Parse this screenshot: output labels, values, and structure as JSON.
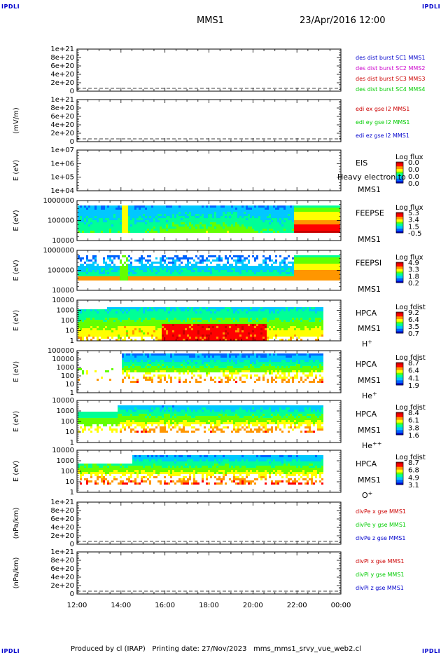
{
  "header": {
    "corner_label": "IPDLI",
    "mission": "MMS1",
    "datetime": "23/Apr/2016 12:00"
  },
  "footer": {
    "text": "Produced by cl (IRAP)   Printing date: 27/Nov/2023   mms_mms1_srvy_vue_web2.cl"
  },
  "colors": {
    "blue": "#0000cc",
    "magenta": "#cc00cc",
    "red": "#cc0000",
    "green": "#00cc00",
    "spectrogram_scale": [
      "#0000c8",
      "#0064ff",
      "#00c8ff",
      "#00ff96",
      "#64ff00",
      "#ffff00",
      "#ff9600",
      "#ff0000",
      "#c80000"
    ]
  },
  "chart_data": {
    "type": "multi-panel time series and spectrograms",
    "x_axis": {
      "tick_labels": [
        "12:00",
        "14:00",
        "16:00",
        "18:00",
        "20:00",
        "22:00",
        "00:00"
      ],
      "range_hours": [
        12,
        24
      ]
    },
    "panels": [
      {
        "id": "p1",
        "kind": "line",
        "ylabel": "",
        "ytick_labels": [
          "1e+21",
          "8e+20",
          "6e+20",
          "4e+20",
          "2e+20",
          "0"
        ],
        "legend": [
          {
            "text": "des dist burst SC1 MMS1",
            "color": "#0000cc"
          },
          {
            "text": "des dist burst SC2 MMS2",
            "color": "#cc00cc"
          },
          {
            "text": "des dist burst SC3 MMS3",
            "color": "#cc0000"
          },
          {
            "text": "des dist burst SC4 MMS4",
            "color": "#00cc00"
          }
        ]
      },
      {
        "id": "p2",
        "kind": "line",
        "ylabel": "(mV/m)",
        "ytick_labels": [
          "1e+21",
          "8e+20",
          "6e+20",
          "4e+20",
          "2e+20",
          "0"
        ],
        "legend": [
          {
            "text": "edi ex gse l2 MMS1",
            "color": "#cc0000"
          },
          {
            "text": "edi ey gse l2 MMS1",
            "color": "#00cc00"
          },
          {
            "text": "edi ez gse l2 MMS1",
            "color": "#0000cc"
          }
        ]
      },
      {
        "id": "p3",
        "kind": "spectrogram",
        "ylabel": "E (eV)",
        "ytick_labels": [
          "1e+07",
          "1e+06",
          "1e+05",
          "1e+04"
        ],
        "instrument": [
          "EIS"
        ],
        "overlay": "Heavy electron to",
        "spacecraft": "MMS1",
        "species": "",
        "colorbar": {
          "title": "Log flux",
          "labels": [
            "0.0",
            "0.0",
            "0.0",
            "0.0"
          ]
        }
      },
      {
        "id": "p4",
        "kind": "spectrogram",
        "ylabel": "E (eV)",
        "ytick_labels": [
          "1000000",
          "100000",
          "10000"
        ],
        "instrument": [
          "FEEPSE"
        ],
        "spacecraft": "MMS1",
        "species": "",
        "colorbar": {
          "title": "Log flux",
          "labels": [
            "5.3",
            "3.4",
            "1.5",
            "-0.5"
          ]
        }
      },
      {
        "id": "p5",
        "kind": "spectrogram",
        "ylabel": "E (eV)",
        "ytick_labels": [
          "1000000",
          "100000",
          "10000"
        ],
        "instrument": [
          "FEEPSI"
        ],
        "spacecraft": "MMS1",
        "species": "",
        "colorbar": {
          "title": "Log flux",
          "labels": [
            "4.9",
            "3.3",
            "1.8",
            "0.2"
          ]
        }
      },
      {
        "id": "p6",
        "kind": "spectrogram",
        "ylabel": "E (eV)",
        "ytick_labels": [
          "10000",
          "1000",
          "100",
          "10",
          "1"
        ],
        "instrument": [
          "HPCA"
        ],
        "spacecraft": "MMS1",
        "species": "H+",
        "colorbar": {
          "title": "Log fdist",
          "labels": [
            "9.2",
            "6.4",
            "3.5",
            "0.7"
          ]
        }
      },
      {
        "id": "p7",
        "kind": "spectrogram",
        "ylabel": "E (eV)",
        "ytick_labels": [
          "100000",
          "10000",
          "1000",
          "100",
          "10",
          "1"
        ],
        "instrument": [
          "HPCA"
        ],
        "spacecraft": "MMS1",
        "species": "He+",
        "colorbar": {
          "title": "Log fdist",
          "labels": [
            "8.7",
            "6.4",
            "4.1",
            "1.9"
          ]
        }
      },
      {
        "id": "p8",
        "kind": "spectrogram",
        "ylabel": "E (eV)",
        "ytick_labels": [
          "10000",
          "1000",
          "100",
          "10",
          "1"
        ],
        "instrument": [
          "HPCA"
        ],
        "spacecraft": "MMS1",
        "species": "He++",
        "colorbar": {
          "title": "Log fdist",
          "labels": [
            "8.4",
            "6.1",
            "3.8",
            "1.6"
          ]
        }
      },
      {
        "id": "p9",
        "kind": "spectrogram",
        "ylabel": "E (eV)",
        "ytick_labels": [
          "10000",
          "1000",
          "100",
          "10",
          "1"
        ],
        "instrument": [
          "HPCA"
        ],
        "spacecraft": "MMS1",
        "species": "O+",
        "colorbar": {
          "title": "Log fdist",
          "labels": [
            "8.7",
            "6.8",
            "4.9",
            "3.1"
          ]
        }
      },
      {
        "id": "p10",
        "kind": "line",
        "ylabel": "(nPa/km)",
        "ytick_labels": [
          "1e+21",
          "8e+20",
          "6e+20",
          "4e+20",
          "2e+20",
          "0"
        ],
        "legend": [
          {
            "text": "divPe x gse MMS1",
            "color": "#cc0000"
          },
          {
            "text": "divPe y gse MMS1",
            "color": "#00cc00"
          },
          {
            "text": "divPe z gse MMS1",
            "color": "#0000cc"
          }
        ]
      },
      {
        "id": "p11",
        "kind": "line",
        "ylabel": "(nPa/km)",
        "ytick_labels": [
          "1e+21",
          "8e+20",
          "6e+20",
          "4e+20",
          "2e+20",
          "0"
        ],
        "legend": [
          {
            "text": "divPi x gse MMS1",
            "color": "#cc0000"
          },
          {
            "text": "divPi y gse MMS1",
            "color": "#00cc00"
          },
          {
            "text": "divPi z gse MMS1",
            "color": "#0000cc"
          }
        ]
      }
    ]
  }
}
